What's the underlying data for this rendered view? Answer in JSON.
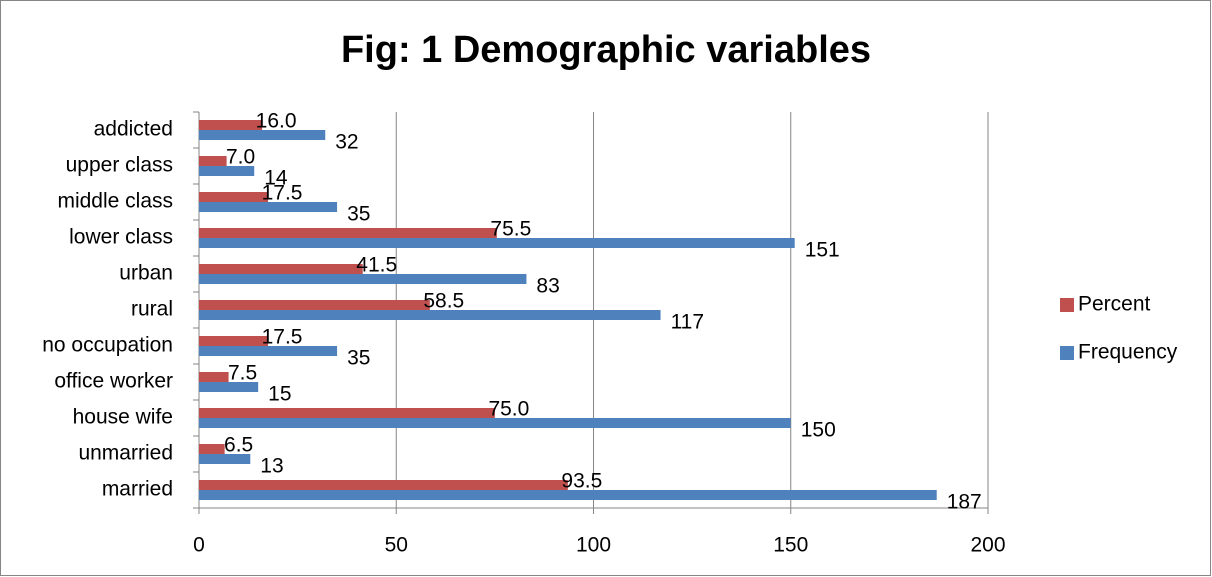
{
  "chart_data": {
    "type": "barh",
    "title": "Fig: 1 Demographic variables",
    "categories": [
      "married",
      "unmarried",
      "house wife",
      "office worker",
      "no occupation",
      "rural",
      "urban",
      "lower class",
      "middle class",
      "upper class",
      "addicted"
    ],
    "series": [
      {
        "name": "Percent",
        "color": "#c0504d",
        "values": [
          93.5,
          6.5,
          75,
          7.5,
          17.5,
          58.5,
          41.5,
          75.5,
          17.5,
          7,
          16
        ],
        "value_labels": [
          "93.5",
          "6.5",
          "75.0",
          "7.5",
          "17.5",
          "58.5",
          "41.5",
          "75.5",
          "17.5",
          "7.0",
          "16.0"
        ]
      },
      {
        "name": "Frequency",
        "color": "#4f81bd",
        "values": [
          187,
          13,
          150,
          15,
          35,
          117,
          83,
          151,
          35,
          14,
          32
        ]
      }
    ],
    "xlim": [
      0,
      200
    ],
    "xticks": [
      0,
      50,
      100,
      150,
      200
    ],
    "grid": true,
    "legend": "right"
  }
}
